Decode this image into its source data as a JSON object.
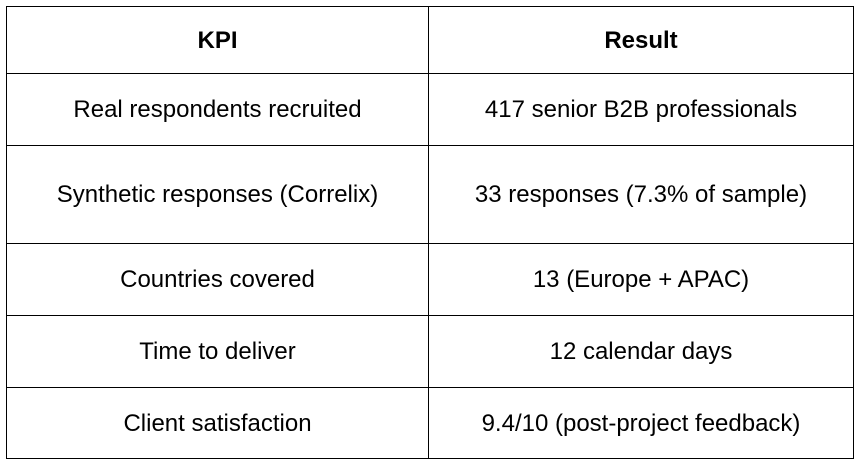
{
  "table": {
    "headers": [
      "KPI",
      "Result"
    ],
    "rows": [
      {
        "kpi": "Real respondents recruited",
        "result": "417 senior B2B professionals"
      },
      {
        "kpi": "Synthetic responses (Correlix)",
        "result": "33 responses (7.3% of sample)"
      },
      {
        "kpi": "Countries covered",
        "result": "13 (Europe + APAC)"
      },
      {
        "kpi": "Time to deliver",
        "result": "12 calendar days"
      },
      {
        "kpi": "Client satisfaction",
        "result": "9.4/10 (post-project feedback)"
      }
    ]
  }
}
